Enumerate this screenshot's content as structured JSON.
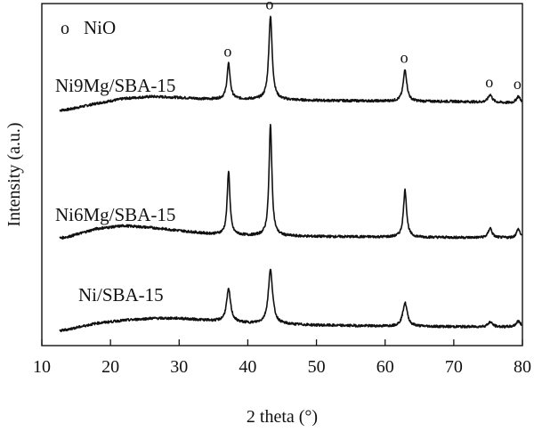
{
  "chart_data": {
    "type": "line",
    "title": "",
    "xlabel": "2 theta (°)",
    "ylabel": "Intensity (a.u.)",
    "xlim": [
      10,
      80
    ],
    "xticks": [
      10,
      20,
      30,
      40,
      50,
      60,
      70,
      80
    ],
    "y_ticks_shown": false,
    "grid": false,
    "legend": {
      "marker": "o",
      "label": "NiO",
      "placement": "top-left"
    },
    "series": [
      {
        "name": "Ni9Mg/SBA-15",
        "baseline": [
          [
            10.0,
            0.0
          ],
          [
            14.0,
            0.3
          ],
          [
            18.0,
            0.9
          ],
          [
            22.0,
            1.4
          ],
          [
            26.0,
            1.6
          ],
          [
            30.0,
            1.5
          ],
          [
            34.0,
            1.35
          ],
          [
            37.0,
            1.35
          ],
          [
            42.0,
            1.3
          ],
          [
            50.0,
            1.2
          ],
          [
            58.0,
            1.15
          ],
          [
            65.0,
            1.1
          ],
          [
            70.0,
            1.1
          ],
          [
            75.0,
            1.0
          ],
          [
            80.0,
            0.9
          ]
        ],
        "peaks": [
          {
            "x": 37.2,
            "height": 3.6,
            "width": 0.35
          },
          {
            "x": 43.3,
            "height": 8.5,
            "width": 0.38
          },
          {
            "x": 62.9,
            "height": 3.2,
            "width": 0.4
          },
          {
            "x": 75.3,
            "height": 0.8,
            "width": 0.45
          },
          {
            "x": 79.4,
            "height": 0.7,
            "width": 0.45
          }
        ]
      },
      {
        "name": "Ni6Mg/SBA-15",
        "baseline": [
          [
            10.0,
            0.0
          ],
          [
            14.0,
            0.5
          ],
          [
            18.0,
            1.3
          ],
          [
            22.0,
            1.6
          ],
          [
            26.0,
            1.4
          ],
          [
            30.0,
            1.1
          ],
          [
            34.0,
            0.8
          ],
          [
            40.0,
            0.6
          ],
          [
            50.0,
            0.5
          ],
          [
            60.0,
            0.45
          ],
          [
            70.0,
            0.4
          ],
          [
            80.0,
            0.35
          ]
        ],
        "peaks": [
          {
            "x": 37.2,
            "height": 6.5,
            "width": 0.3
          },
          {
            "x": 43.3,
            "height": 11.3,
            "width": 0.32
          },
          {
            "x": 62.9,
            "height": 4.8,
            "width": 0.35
          },
          {
            "x": 75.3,
            "height": 1.0,
            "width": 0.4
          },
          {
            "x": 79.4,
            "height": 0.9,
            "width": 0.4
          }
        ]
      },
      {
        "name": "Ni/SBA-15",
        "baseline": [
          [
            10.0,
            0.0
          ],
          [
            14.0,
            0.5
          ],
          [
            18.0,
            1.1
          ],
          [
            22.0,
            1.4
          ],
          [
            26.0,
            1.6
          ],
          [
            30.0,
            1.6
          ],
          [
            34.0,
            1.4
          ],
          [
            40.0,
            1.1
          ],
          [
            50.0,
            0.9
          ],
          [
            60.0,
            0.8
          ],
          [
            70.0,
            0.75
          ],
          [
            80.0,
            0.7
          ]
        ],
        "peaks": [
          {
            "x": 37.2,
            "height": 3.3,
            "width": 0.45
          },
          {
            "x": 43.3,
            "height": 5.5,
            "width": 0.48
          },
          {
            "x": 62.9,
            "height": 2.4,
            "width": 0.5
          },
          {
            "x": 75.3,
            "height": 0.5,
            "width": 0.5
          },
          {
            "x": 79.4,
            "height": 0.6,
            "width": 0.5
          }
        ]
      }
    ],
    "peak_markers": [
      {
        "symbol": "o",
        "x": 37.2,
        "series": "Ni9Mg/SBA-15"
      },
      {
        "symbol": "o",
        "x": 43.3,
        "series": "Ni9Mg/SBA-15"
      },
      {
        "symbol": "o",
        "x": 62.9,
        "series": "Ni9Mg/SBA-15"
      },
      {
        "symbol": "o",
        "x": 75.3,
        "series": "Ni9Mg/SBA-15"
      },
      {
        "symbol": "o",
        "x": 79.4,
        "series": "Ni9Mg/SBA-15"
      }
    ]
  }
}
